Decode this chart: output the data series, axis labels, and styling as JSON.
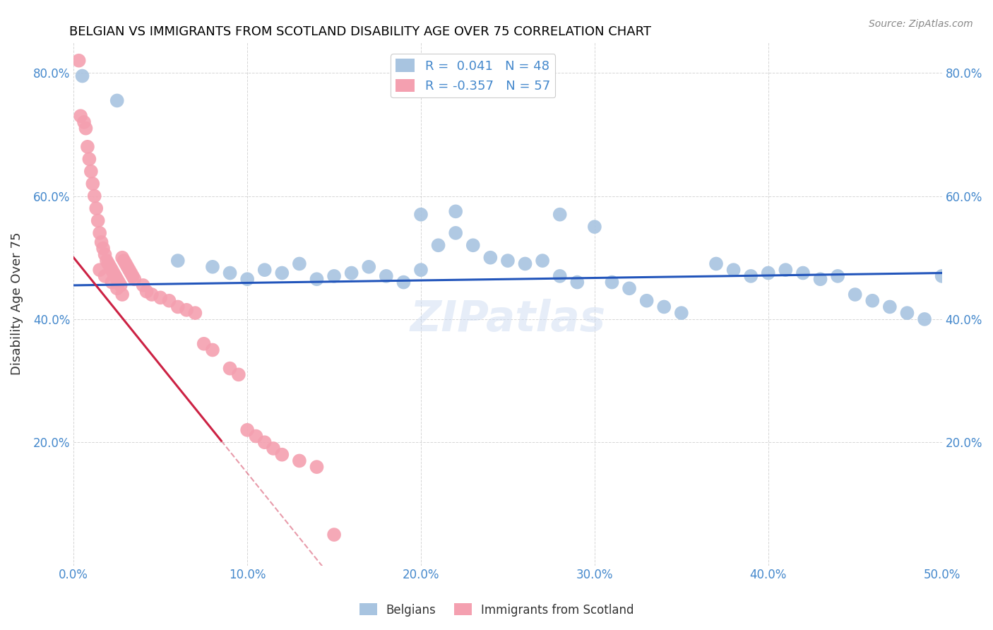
{
  "title": "BELGIAN VS IMMIGRANTS FROM SCOTLAND DISABILITY AGE OVER 75 CORRELATION CHART",
  "source": "Source: ZipAtlas.com",
  "ylabel": "Disability Age Over 75",
  "xlim": [
    0.0,
    0.5
  ],
  "ylim": [
    0.0,
    0.85
  ],
  "xtick_labels": [
    "0.0%",
    "10.0%",
    "20.0%",
    "30.0%",
    "40.0%",
    "50.0%"
  ],
  "xtick_vals": [
    0.0,
    0.1,
    0.2,
    0.3,
    0.4,
    0.5
  ],
  "ytick_labels": [
    "20.0%",
    "40.0%",
    "60.0%",
    "80.0%"
  ],
  "ytick_vals": [
    0.2,
    0.4,
    0.6,
    0.8
  ],
  "legend1_R": "0.041",
  "legend1_N": "48",
  "legend2_R": "-0.357",
  "legend2_N": "57",
  "blue_color": "#a8c4e0",
  "pink_color": "#f4a0b0",
  "blue_line_color": "#2255bb",
  "pink_line_color": "#cc2244",
  "watermark": "ZIPatlas",
  "belgians_x": [
    0.005,
    0.025,
    0.06,
    0.08,
    0.09,
    0.1,
    0.11,
    0.12,
    0.13,
    0.14,
    0.15,
    0.16,
    0.17,
    0.18,
    0.19,
    0.2,
    0.21,
    0.22,
    0.23,
    0.24,
    0.25,
    0.26,
    0.27,
    0.28,
    0.29,
    0.3,
    0.31,
    0.32,
    0.33,
    0.34,
    0.35,
    0.37,
    0.38,
    0.39,
    0.2,
    0.22,
    0.28,
    0.4,
    0.41,
    0.42,
    0.43,
    0.44,
    0.45,
    0.46,
    0.47,
    0.48,
    0.49,
    0.5
  ],
  "belgians_y": [
    0.795,
    0.755,
    0.495,
    0.485,
    0.475,
    0.465,
    0.48,
    0.475,
    0.49,
    0.465,
    0.47,
    0.475,
    0.485,
    0.47,
    0.46,
    0.48,
    0.52,
    0.54,
    0.52,
    0.5,
    0.495,
    0.49,
    0.495,
    0.47,
    0.46,
    0.55,
    0.46,
    0.45,
    0.43,
    0.42,
    0.41,
    0.49,
    0.48,
    0.47,
    0.57,
    0.575,
    0.57,
    0.475,
    0.48,
    0.475,
    0.465,
    0.47,
    0.44,
    0.43,
    0.42,
    0.41,
    0.4,
    0.47
  ],
  "scots_x": [
    0.003,
    0.004,
    0.006,
    0.007,
    0.008,
    0.009,
    0.01,
    0.011,
    0.012,
    0.013,
    0.014,
    0.015,
    0.016,
    0.017,
    0.018,
    0.019,
    0.02,
    0.021,
    0.022,
    0.023,
    0.024,
    0.025,
    0.026,
    0.027,
    0.028,
    0.029,
    0.03,
    0.031,
    0.032,
    0.033,
    0.034,
    0.035,
    0.04,
    0.042,
    0.045,
    0.05,
    0.055,
    0.06,
    0.065,
    0.07,
    0.075,
    0.08,
    0.09,
    0.095,
    0.1,
    0.105,
    0.11,
    0.115,
    0.12,
    0.13,
    0.14,
    0.15,
    0.015,
    0.018,
    0.022,
    0.025,
    0.028
  ],
  "scots_y": [
    0.82,
    0.73,
    0.72,
    0.71,
    0.68,
    0.66,
    0.64,
    0.62,
    0.6,
    0.58,
    0.56,
    0.54,
    0.525,
    0.515,
    0.505,
    0.495,
    0.49,
    0.485,
    0.48,
    0.475,
    0.47,
    0.465,
    0.46,
    0.455,
    0.5,
    0.495,
    0.49,
    0.485,
    0.48,
    0.475,
    0.47,
    0.465,
    0.455,
    0.445,
    0.44,
    0.435,
    0.43,
    0.42,
    0.415,
    0.41,
    0.36,
    0.35,
    0.32,
    0.31,
    0.22,
    0.21,
    0.2,
    0.19,
    0.18,
    0.17,
    0.16,
    0.05,
    0.48,
    0.47,
    0.46,
    0.45,
    0.44
  ],
  "background_color": "#ffffff",
  "grid_color": "#cccccc",
  "title_color": "#000000",
  "tick_label_color": "#4488cc"
}
